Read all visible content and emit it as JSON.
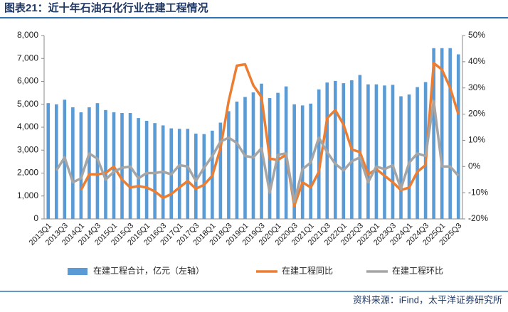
{
  "chart_data": {
    "type": "bar_line",
    "title": "图表21：近十年石油石化行业在建工程情况",
    "source": "资料来源：iFind，太平洋证券研究所",
    "categories": [
      "2013Q1",
      null,
      "2013Q3",
      null,
      "2014Q1",
      null,
      "2014Q3",
      null,
      "2015Q1",
      null,
      "2015Q3",
      null,
      "2016Q1",
      null,
      "2016Q3",
      null,
      "2017Q1",
      null,
      "2017Q3",
      null,
      "2018Q1",
      null,
      "2018Q3",
      null,
      "2019Q1",
      null,
      "2019Q3",
      null,
      "2020Q1",
      null,
      "2020Q3",
      null,
      "2021Q1",
      null,
      "2021Q3",
      null,
      "2022Q1",
      null,
      "2022Q3",
      null,
      "2023Q1",
      null,
      "2023Q3",
      null,
      "2024Q1",
      null,
      "2024Q3",
      null,
      "2025Q1",
      null,
      "2025Q3"
    ],
    "series": [
      {
        "name": "在建工程合计，亿元（左轴）",
        "type": "bar",
        "color": "#5b9bd5",
        "values": [
          5050,
          5000,
          5200,
          4870,
          4650,
          4870,
          5050,
          4750,
          4650,
          4620,
          4620,
          4400,
          4280,
          4180,
          4080,
          3950,
          3930,
          3930,
          3720,
          3700,
          3850,
          4200,
          4700,
          5120,
          5320,
          5520,
          5900,
          5270,
          5500,
          5780,
          5000,
          4950,
          5030,
          5650,
          5950,
          6020,
          5920,
          6050,
          6280,
          5870,
          5870,
          5820,
          5850,
          5350,
          5430,
          5750,
          5970,
          7450,
          7450,
          7450,
          7180
        ]
      },
      {
        "name": "在建工程同比",
        "type": "line",
        "axis": "y2",
        "color": "#ed7d31",
        "values": [
          null,
          null,
          null,
          null,
          -9,
          -3,
          -3,
          -2.5,
          0,
          -5,
          -8,
          -7.5,
          -8,
          -9.5,
          -12,
          -10.5,
          -8,
          -5.5,
          -8.5,
          -7,
          -3.5,
          7,
          25,
          38.5,
          39,
          31,
          26.5,
          3,
          2.5,
          4.5,
          -15,
          -6,
          -8,
          -2,
          18.5,
          21.5,
          16,
          6.5,
          5.5,
          -3,
          -1,
          -3.5,
          -6,
          -9,
          -8,
          -2,
          0.5,
          39.5,
          37,
          30,
          20
        ]
      },
      {
        "name": "在建工程环比",
        "type": "line",
        "axis": "y2",
        "color": "#a5a5a5",
        "values": [
          null,
          -1.5,
          3.5,
          -6,
          -4.5,
          5,
          3,
          -5,
          -2,
          -0.5,
          0,
          -4.5,
          -2.5,
          -2.5,
          -2,
          -3,
          0.5,
          0,
          -5.5,
          -0.5,
          4,
          9.5,
          11,
          9,
          4,
          3.5,
          7,
          -10,
          4.5,
          5,
          -13.5,
          -1,
          1.5,
          11,
          5.5,
          1,
          -1.5,
          2,
          3.5,
          -6,
          0,
          -1,
          0.5,
          -8.5,
          1.5,
          5,
          4,
          25,
          0,
          0,
          -3.5
        ]
      }
    ],
    "ylim": [
      0,
      8000
    ],
    "yticks": [
      0,
      {
        "value": 1000,
        "label": "1,000"
      },
      {
        "value": 2000,
        "label": "2,000"
      },
      {
        "value": 3000,
        "label": "3,000"
      },
      {
        "value": 4000,
        "label": "4,000"
      },
      {
        "value": 5000,
        "label": "5,000"
      },
      {
        "value": 6000,
        "label": "6,000"
      },
      {
        "value": 7000,
        "label": "7,000"
      },
      {
        "value": 8000,
        "label": "8,000"
      }
    ],
    "y2lim": [
      -20,
      50
    ],
    "y2ticks": [
      {
        "value": -20,
        "label": "-20%"
      },
      {
        "value": -10,
        "label": "-10%"
      },
      {
        "value": 0,
        "label": "0%"
      },
      {
        "value": 10,
        "label": "10%"
      },
      {
        "value": 20,
        "label": "20%"
      },
      {
        "value": 30,
        "label": "30%"
      },
      {
        "value": 40,
        "label": "40%"
      },
      {
        "value": 50,
        "label": "50%"
      }
    ],
    "grid": false
  }
}
